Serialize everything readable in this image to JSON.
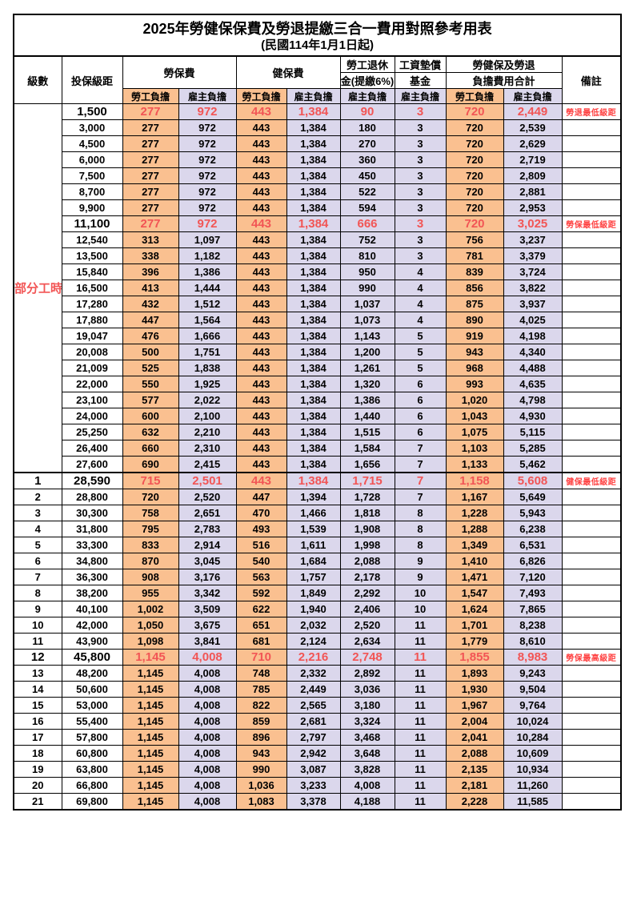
{
  "title": "2025年勞健保保費及勞退提繳三合一費用對照參考用表",
  "subtitle": "(民國114年1月1日起)",
  "columns": {
    "level": "級數",
    "bracket": "投保級距",
    "labor_insurance": "勞保費",
    "health_insurance": "健保費",
    "pension_line1": "勞工退休",
    "pension_line2": "金(提繳6%)",
    "wage_fund_line1": "工資墊償",
    "wage_fund_line2": "基金",
    "total_line1": "勞健保及勞退",
    "total_line2": "負擔費用合計",
    "remark": "備註",
    "employee_burden": "勞工負擔",
    "employer_burden": "雇主負擔"
  },
  "part_time_label": "部分工時",
  "colors": {
    "employee_bg": "#FAC090",
    "employer_bg": "#DBD7EC",
    "highlight_text": "#F25555",
    "remark_text": "#FF4040",
    "border": "#000000"
  },
  "rows": [
    [
      "",
      "1,500",
      "277",
      "972",
      "443",
      "1,384",
      "90",
      "3",
      "720",
      "2,449",
      "勞退最低級距",
      1
    ],
    [
      "",
      "3,000",
      "277",
      "972",
      "443",
      "1,384",
      "180",
      "3",
      "720",
      "2,539",
      "",
      0
    ],
    [
      "",
      "4,500",
      "277",
      "972",
      "443",
      "1,384",
      "270",
      "3",
      "720",
      "2,629",
      "",
      0
    ],
    [
      "",
      "6,000",
      "277",
      "972",
      "443",
      "1,384",
      "360",
      "3",
      "720",
      "2,719",
      "",
      0
    ],
    [
      "",
      "7,500",
      "277",
      "972",
      "443",
      "1,384",
      "450",
      "3",
      "720",
      "2,809",
      "",
      0
    ],
    [
      "",
      "8,700",
      "277",
      "972",
      "443",
      "1,384",
      "522",
      "3",
      "720",
      "2,881",
      "",
      0
    ],
    [
      "",
      "9,900",
      "277",
      "972",
      "443",
      "1,384",
      "594",
      "3",
      "720",
      "2,953",
      "",
      0
    ],
    [
      "",
      "11,100",
      "277",
      "972",
      "443",
      "1,384",
      "666",
      "3",
      "720",
      "3,025",
      "勞保最低級距",
      1
    ],
    [
      "",
      "12,540",
      "313",
      "1,097",
      "443",
      "1,384",
      "752",
      "3",
      "756",
      "3,237",
      "",
      0
    ],
    [
      "",
      "13,500",
      "338",
      "1,182",
      "443",
      "1,384",
      "810",
      "3",
      "781",
      "3,379",
      "",
      0
    ],
    [
      "",
      "15,840",
      "396",
      "1,386",
      "443",
      "1,384",
      "950",
      "4",
      "839",
      "3,724",
      "",
      0
    ],
    [
      "",
      "16,500",
      "413",
      "1,444",
      "443",
      "1,384",
      "990",
      "4",
      "856",
      "3,822",
      "",
      0
    ],
    [
      "",
      "17,280",
      "432",
      "1,512",
      "443",
      "1,384",
      "1,037",
      "4",
      "875",
      "3,937",
      "",
      0
    ],
    [
      "",
      "17,880",
      "447",
      "1,564",
      "443",
      "1,384",
      "1,073",
      "4",
      "890",
      "4,025",
      "",
      0
    ],
    [
      "",
      "19,047",
      "476",
      "1,666",
      "443",
      "1,384",
      "1,143",
      "5",
      "919",
      "4,198",
      "",
      0
    ],
    [
      "",
      "20,008",
      "500",
      "1,751",
      "443",
      "1,384",
      "1,200",
      "5",
      "943",
      "4,340",
      "",
      0
    ],
    [
      "",
      "21,009",
      "525",
      "1,838",
      "443",
      "1,384",
      "1,261",
      "5",
      "968",
      "4,488",
      "",
      0
    ],
    [
      "",
      "22,000",
      "550",
      "1,925",
      "443",
      "1,384",
      "1,320",
      "6",
      "993",
      "4,635",
      "",
      0
    ],
    [
      "",
      "23,100",
      "577",
      "2,022",
      "443",
      "1,384",
      "1,386",
      "6",
      "1,020",
      "4,798",
      "",
      0
    ],
    [
      "",
      "24,000",
      "600",
      "2,100",
      "443",
      "1,384",
      "1,440",
      "6",
      "1,043",
      "4,930",
      "",
      0
    ],
    [
      "",
      "25,250",
      "632",
      "2,210",
      "443",
      "1,384",
      "1,515",
      "6",
      "1,075",
      "5,115",
      "",
      0
    ],
    [
      "",
      "26,400",
      "660",
      "2,310",
      "443",
      "1,384",
      "1,584",
      "7",
      "1,103",
      "5,285",
      "",
      0
    ],
    [
      "",
      "27,600",
      "690",
      "2,415",
      "443",
      "1,384",
      "1,656",
      "7",
      "1,133",
      "5,462",
      "",
      0
    ],
    [
      "1",
      "28,590",
      "715",
      "2,501",
      "443",
      "1,384",
      "1,715",
      "7",
      "1,158",
      "5,608",
      "健保最低級距",
      1
    ],
    [
      "2",
      "28,800",
      "720",
      "2,520",
      "447",
      "1,394",
      "1,728",
      "7",
      "1,167",
      "5,649",
      "",
      0
    ],
    [
      "3",
      "30,300",
      "758",
      "2,651",
      "470",
      "1,466",
      "1,818",
      "8",
      "1,228",
      "5,943",
      "",
      0
    ],
    [
      "4",
      "31,800",
      "795",
      "2,783",
      "493",
      "1,539",
      "1,908",
      "8",
      "1,288",
      "6,238",
      "",
      0
    ],
    [
      "5",
      "33,300",
      "833",
      "2,914",
      "516",
      "1,611",
      "1,998",
      "8",
      "1,349",
      "6,531",
      "",
      0
    ],
    [
      "6",
      "34,800",
      "870",
      "3,045",
      "540",
      "1,684",
      "2,088",
      "9",
      "1,410",
      "6,826",
      "",
      0
    ],
    [
      "7",
      "36,300",
      "908",
      "3,176",
      "563",
      "1,757",
      "2,178",
      "9",
      "1,471",
      "7,120",
      "",
      0
    ],
    [
      "8",
      "38,200",
      "955",
      "3,342",
      "592",
      "1,849",
      "2,292",
      "10",
      "1,547",
      "7,493",
      "",
      0
    ],
    [
      "9",
      "40,100",
      "1,002",
      "3,509",
      "622",
      "1,940",
      "2,406",
      "10",
      "1,624",
      "7,865",
      "",
      0
    ],
    [
      "10",
      "42,000",
      "1,050",
      "3,675",
      "651",
      "2,032",
      "2,520",
      "11",
      "1,701",
      "8,238",
      "",
      0
    ],
    [
      "11",
      "43,900",
      "1,098",
      "3,841",
      "681",
      "2,124",
      "2,634",
      "11",
      "1,779",
      "8,610",
      "",
      0
    ],
    [
      "12",
      "45,800",
      "1,145",
      "4,008",
      "710",
      "2,216",
      "2,748",
      "11",
      "1,855",
      "8,983",
      "勞保最高級距",
      1
    ],
    [
      "13",
      "48,200",
      "1,145",
      "4,008",
      "748",
      "2,332",
      "2,892",
      "11",
      "1,893",
      "9,243",
      "",
      0
    ],
    [
      "14",
      "50,600",
      "1,145",
      "4,008",
      "785",
      "2,449",
      "3,036",
      "11",
      "1,930",
      "9,504",
      "",
      0
    ],
    [
      "15",
      "53,000",
      "1,145",
      "4,008",
      "822",
      "2,565",
      "3,180",
      "11",
      "1,967",
      "9,764",
      "",
      0
    ],
    [
      "16",
      "55,400",
      "1,145",
      "4,008",
      "859",
      "2,681",
      "3,324",
      "11",
      "2,004",
      "10,024",
      "",
      0
    ],
    [
      "17",
      "57,800",
      "1,145",
      "4,008",
      "896",
      "2,797",
      "3,468",
      "11",
      "2,041",
      "10,284",
      "",
      0
    ],
    [
      "18",
      "60,800",
      "1,145",
      "4,008",
      "943",
      "2,942",
      "3,648",
      "11",
      "2,088",
      "10,609",
      "",
      0
    ],
    [
      "19",
      "63,800",
      "1,145",
      "4,008",
      "990",
      "3,087",
      "3,828",
      "11",
      "2,135",
      "10,934",
      "",
      0
    ],
    [
      "20",
      "66,800",
      "1,145",
      "4,008",
      "1,036",
      "3,233",
      "4,008",
      "11",
      "2,181",
      "11,260",
      "",
      0
    ],
    [
      "21",
      "69,800",
      "1,145",
      "4,008",
      "1,083",
      "3,378",
      "4,188",
      "11",
      "2,228",
      "11,585",
      "",
      0
    ]
  ]
}
